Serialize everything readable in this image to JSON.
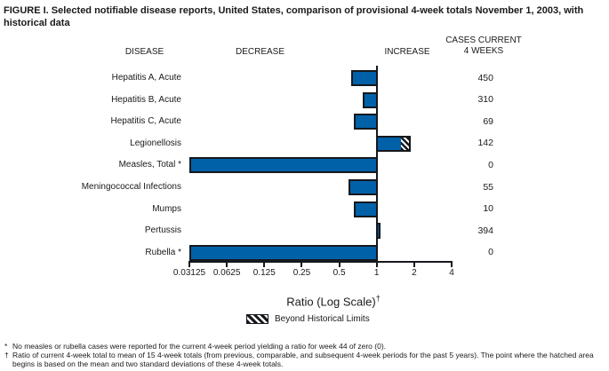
{
  "title": "FIGURE I. Selected notifiable disease reports, United States, comparison of provisional 4-week totals November 1, 2003, with historical data",
  "headers": {
    "disease": "DISEASE",
    "decrease": "DECREASE",
    "increase": "INCREASE",
    "cases_line1": "CASES CURRENT",
    "cases_line2": "4 WEEKS"
  },
  "chart_data": {
    "type": "bar",
    "orientation": "horizontal",
    "scale": "log2",
    "xlabel": "Ratio (Log Scale)",
    "xlabel_sup": "†",
    "legend_label": "Beyond Historical Limits",
    "legend_pattern": "hatched",
    "axis_range": [
      0.03125,
      4
    ],
    "baseline": 1,
    "tick_labels": [
      "0.03125",
      "0.0625",
      "0.125",
      "0.25",
      "0.5",
      "1",
      "2",
      "4"
    ],
    "tick_values": [
      0.03125,
      0.0625,
      0.125,
      0.25,
      0.5,
      1,
      2,
      4
    ],
    "rows": [
      {
        "disease": "Hepatitis A, Acute",
        "ratio": 0.62,
        "cases": "450"
      },
      {
        "disease": "Hepatitis B, Acute",
        "ratio": 0.77,
        "cases": "310"
      },
      {
        "disease": "Hepatitis C, Acute",
        "ratio": 0.65,
        "cases": "69"
      },
      {
        "disease": "Legionellosis",
        "ratio": 1.87,
        "hatch_start": 1.61,
        "beyond_historical_limits": true,
        "cases": "142"
      },
      {
        "disease": "Measles, Total *",
        "ratio": 0,
        "cases": "0"
      },
      {
        "disease": "Meningococcal Infections",
        "ratio": 0.59,
        "cases": "55"
      },
      {
        "disease": "Mumps",
        "ratio": 0.65,
        "cases": "10"
      },
      {
        "disease": "Pertussis",
        "ratio": 1.07,
        "cases": "394"
      },
      {
        "disease": "Rubella *",
        "ratio": 0,
        "cases": "0"
      }
    ]
  },
  "footnotes": [
    {
      "marker": "*",
      "text": "No measles or rubella cases were reported for the current 4-week period yielding a ratio for week 44 of zero (0)."
    },
    {
      "marker": "†",
      "text": "Ratio of current 4-week total to mean of 15 4-week totals (from previous, comparable, and subsequent 4-week periods for the past 5 years). The point where the hatched area begins is based on the mean and two standard deviations of these 4-week totals."
    }
  ],
  "colors": {
    "bar_fill": "#0061A9",
    "outline": "#15181C",
    "background": "#FFFFFF"
  }
}
